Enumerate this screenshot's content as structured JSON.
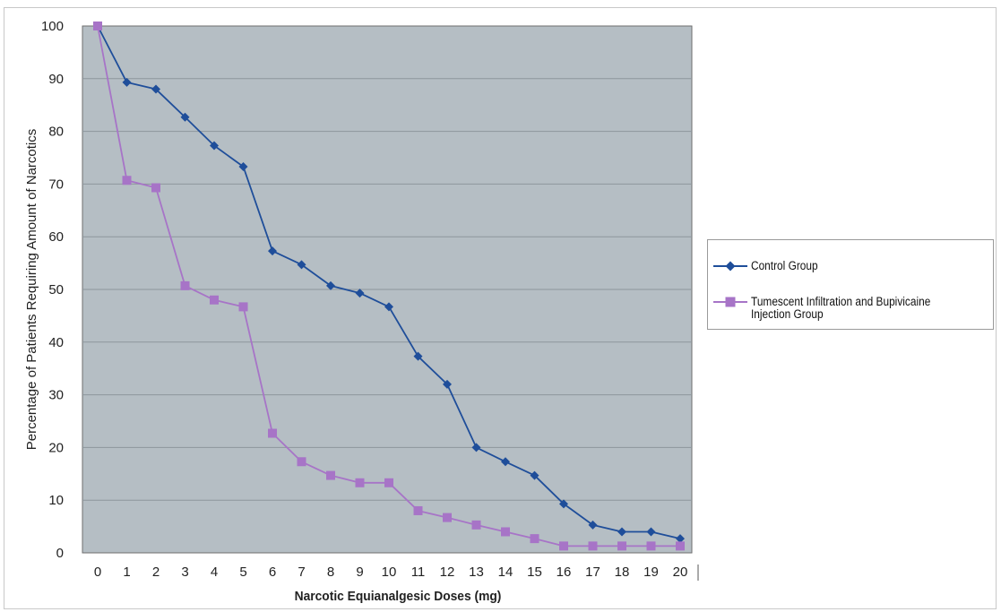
{
  "chart_data": {
    "type": "line",
    "title": "",
    "xlabel": "Narcotic Equianalgesic Doses (mg)",
    "ylabel": "Percentage of Patients Requiring Amount of Narcotics",
    "x": [
      0,
      1,
      2,
      3,
      4,
      5,
      6,
      7,
      8,
      9,
      10,
      11,
      12,
      13,
      14,
      15,
      16,
      17,
      18,
      19,
      20
    ],
    "x_tick_labels": [
      "0",
      "1",
      "2",
      "3",
      "4",
      "5",
      "6",
      "7",
      "8",
      "9",
      "10",
      "11",
      "12",
      "13",
      "14",
      "15",
      "16",
      "17",
      "18",
      "19",
      "20"
    ],
    "ylim": [
      0,
      100
    ],
    "y_ticks": [
      0,
      10,
      20,
      30,
      40,
      50,
      60,
      70,
      80,
      90,
      100
    ],
    "grid": true,
    "legend_position": "right",
    "plot_background": "#b5bec4",
    "series": [
      {
        "name": "Control Group",
        "color": "#1f4e9a",
        "marker": "diamond",
        "values": [
          100,
          89.3,
          88,
          82.7,
          77.3,
          73.3,
          57.3,
          54.7,
          50.7,
          49.3,
          46.7,
          37.3,
          32,
          20,
          17.3,
          14.7,
          9.3,
          5.3,
          4,
          4,
          2.7
        ]
      },
      {
        "name": "Tumescent Infiltration and Bupivicaine Injection Group",
        "color": "#a774c7",
        "marker": "square",
        "values": [
          100,
          70.7,
          69.3,
          50.7,
          48,
          46.7,
          22.7,
          17.3,
          14.7,
          13.3,
          13.3,
          8,
          6.7,
          5.3,
          4,
          2.7,
          1.3,
          1.3,
          1.3,
          1.3,
          1.3
        ]
      }
    ]
  }
}
